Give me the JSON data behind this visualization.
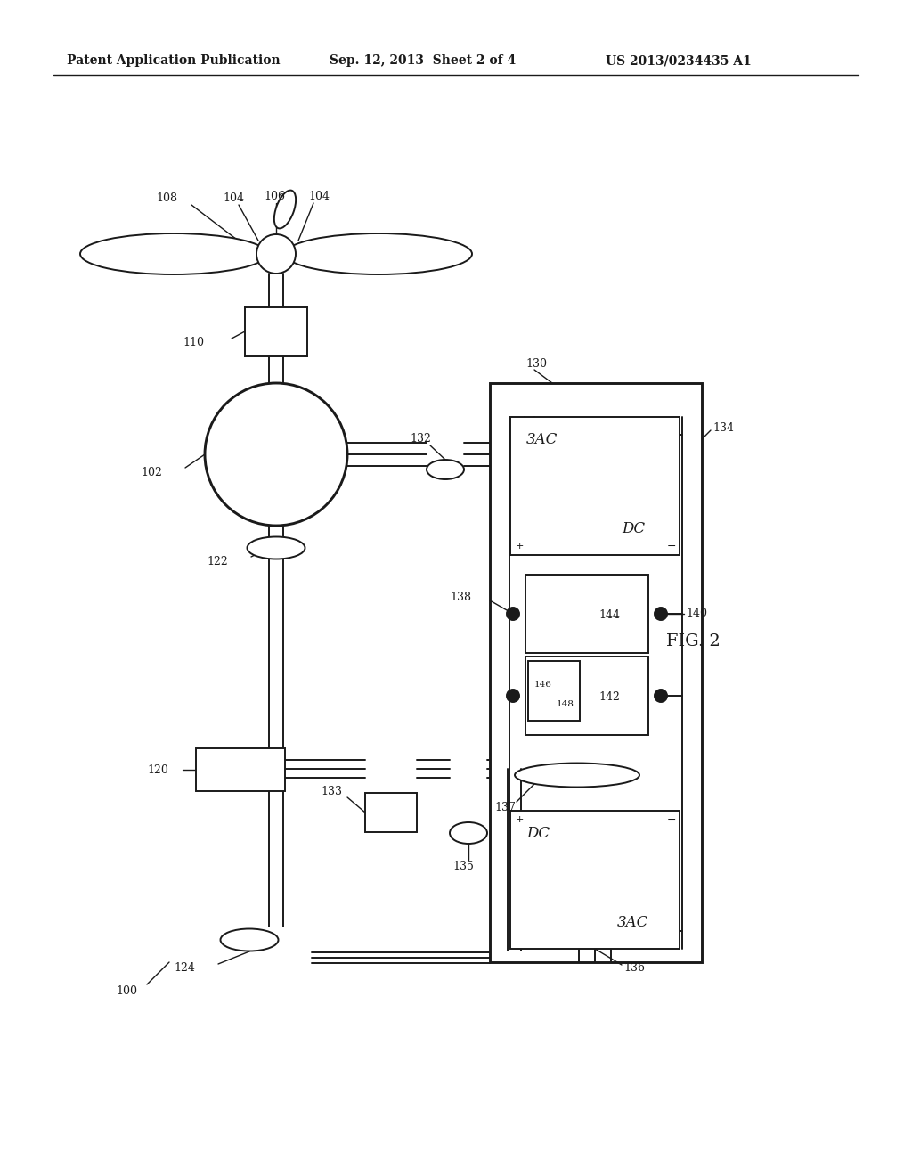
{
  "header_left": "Patent Application Publication",
  "header_mid": "Sep. 12, 2013  Sheet 2 of 4",
  "header_right": "US 2013/0234435 A1",
  "fig_label": "FIG. 2",
  "bg_color": "#ffffff",
  "lc": "#1a1a1a",
  "lw": 1.4
}
